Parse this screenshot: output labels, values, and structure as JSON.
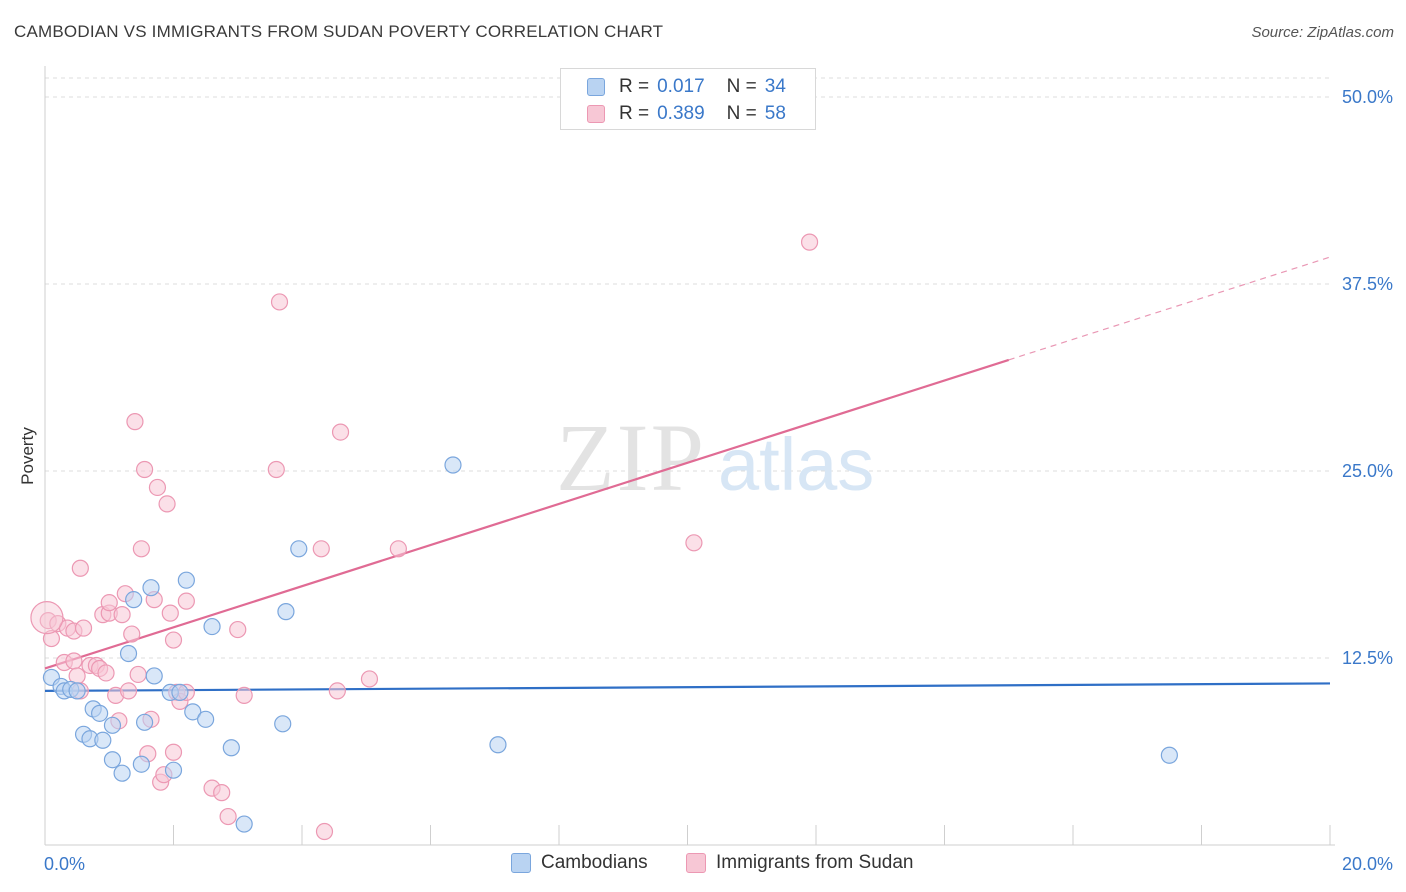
{
  "title": "CAMBODIAN VS IMMIGRANTS FROM SUDAN POVERTY CORRELATION CHART",
  "source": "Source: ZipAtlas.com",
  "watermark": {
    "zip": "ZIP",
    "atlas": "atlas"
  },
  "legend_top": [
    {
      "r_label": "R =",
      "r_value": "0.017",
      "n_label": "N =",
      "n_value": "34"
    },
    {
      "r_label": "R =",
      "r_value": "0.389",
      "n_label": "N =",
      "n_value": "58"
    }
  ],
  "legend_bottom": [
    "Cambodians",
    "Immigrants from Sudan"
  ],
  "colors": {
    "blue_fill": "#b9d3f2",
    "blue_stroke": "#7aa6dd",
    "blue_line": "#2f6fc6",
    "pink_fill": "#f7c7d5",
    "pink_stroke": "#ec98b3",
    "pink_line": "#e06b94",
    "tick_text": "#3a78c9",
    "grid": "#dddddd"
  },
  "chart_data": {
    "type": "scatter",
    "title": "CAMBODIAN VS IMMIGRANTS FROM SUDAN POVERTY CORRELATION CHART",
    "xlabel": "",
    "ylabel": "Poverty",
    "xlim": [
      0,
      20
    ],
    "ylim": [
      0,
      52
    ],
    "x_tick_labels": [
      {
        "value": 0,
        "label": "0.0%"
      },
      {
        "value": 20,
        "label": "20.0%"
      }
    ],
    "y_tick_labels": [
      {
        "value": 12.5,
        "label": "12.5%"
      },
      {
        "value": 25,
        "label": "25.0%"
      },
      {
        "value": 37.5,
        "label": "37.5%"
      },
      {
        "value": 50,
        "label": "50.0%"
      }
    ],
    "series": [
      {
        "name": "Cambodians",
        "color_key": "blue",
        "r": 0.017,
        "n": 34,
        "trend": {
          "x0": 0,
          "y0": 10.3,
          "x1": 20,
          "y1": 10.8,
          "solid_until": 20
        },
        "points": [
          [
            0.1,
            11.2
          ],
          [
            0.25,
            10.6
          ],
          [
            0.3,
            10.3
          ],
          [
            0.4,
            10.4
          ],
          [
            0.5,
            10.3
          ],
          [
            0.6,
            7.4
          ],
          [
            0.7,
            7.1
          ],
          [
            0.75,
            9.1
          ],
          [
            0.85,
            8.8
          ],
          [
            0.9,
            7.0
          ],
          [
            1.05,
            8.0
          ],
          [
            1.05,
            5.7
          ],
          [
            1.2,
            4.8
          ],
          [
            1.3,
            12.8
          ],
          [
            1.38,
            16.4
          ],
          [
            1.5,
            5.4
          ],
          [
            1.55,
            8.2
          ],
          [
            1.65,
            17.2
          ],
          [
            1.7,
            11.3
          ],
          [
            1.95,
            10.2
          ],
          [
            2.0,
            5.0
          ],
          [
            2.1,
            10.2
          ],
          [
            2.2,
            17.7
          ],
          [
            2.3,
            8.9
          ],
          [
            2.5,
            8.4
          ],
          [
            2.6,
            14.6
          ],
          [
            2.9,
            6.5
          ],
          [
            3.1,
            1.4
          ],
          [
            3.7,
            8.1
          ],
          [
            3.75,
            15.6
          ],
          [
            3.95,
            19.8
          ],
          [
            6.35,
            25.4
          ],
          [
            7.05,
            6.7
          ],
          [
            17.5,
            6.0
          ]
        ]
      },
      {
        "name": "Immigrants from Sudan",
        "color_key": "pink",
        "r": 0.389,
        "n": 58,
        "trend": {
          "x0": 0,
          "y0": 11.8,
          "x1": 20,
          "y1": 39.3,
          "solid_until": 15.0
        },
        "points": [
          [
            0.05,
            15.0
          ],
          [
            0.1,
            13.8
          ],
          [
            0.2,
            14.8
          ],
          [
            0.3,
            12.2
          ],
          [
            0.35,
            14.5
          ],
          [
            0.45,
            14.3
          ],
          [
            0.45,
            12.3
          ],
          [
            0.5,
            11.3
          ],
          [
            0.55,
            10.3
          ],
          [
            0.55,
            18.5
          ],
          [
            0.6,
            14.5
          ],
          [
            0.7,
            12.0
          ],
          [
            0.8,
            12.0
          ],
          [
            0.85,
            11.8
          ],
          [
            0.9,
            15.4
          ],
          [
            0.95,
            11.5
          ],
          [
            1.0,
            15.5
          ],
          [
            1.0,
            16.2
          ],
          [
            1.1,
            10.0
          ],
          [
            1.15,
            8.3
          ],
          [
            1.2,
            15.4
          ],
          [
            1.25,
            16.8
          ],
          [
            1.3,
            10.3
          ],
          [
            1.35,
            14.1
          ],
          [
            1.4,
            28.3
          ],
          [
            1.45,
            11.4
          ],
          [
            1.5,
            19.8
          ],
          [
            1.55,
            25.1
          ],
          [
            1.6,
            6.1
          ],
          [
            1.65,
            8.4
          ],
          [
            1.7,
            16.4
          ],
          [
            1.75,
            23.9
          ],
          [
            1.8,
            4.2
          ],
          [
            1.85,
            4.7
          ],
          [
            1.9,
            22.8
          ],
          [
            1.95,
            15.5
          ],
          [
            2.0,
            13.7
          ],
          [
            2.0,
            6.2
          ],
          [
            2.05,
            10.2
          ],
          [
            2.1,
            9.6
          ],
          [
            2.2,
            10.2
          ],
          [
            2.2,
            16.3
          ],
          [
            2.6,
            3.8
          ],
          [
            2.75,
            3.5
          ],
          [
            2.85,
            1.9
          ],
          [
            3.0,
            14.4
          ],
          [
            3.1,
            10.0
          ],
          [
            3.6,
            25.1
          ],
          [
            3.65,
            36.3
          ],
          [
            4.3,
            19.8
          ],
          [
            4.35,
            0.9
          ],
          [
            4.6,
            27.6
          ],
          [
            4.55,
            10.3
          ],
          [
            5.05,
            11.1
          ],
          [
            5.5,
            19.8
          ],
          [
            10.1,
            20.2
          ],
          [
            11.9,
            40.3
          ],
          [
            0.03,
            15.2
          ]
        ]
      }
    ]
  }
}
